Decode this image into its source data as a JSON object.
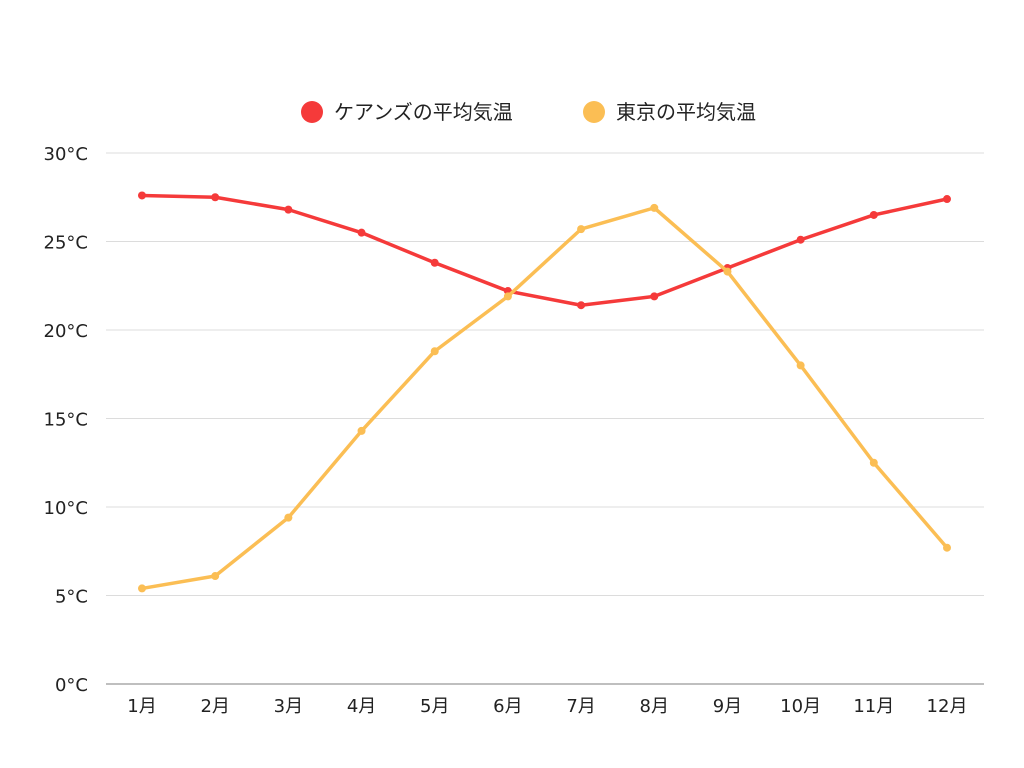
{
  "chart_data": {
    "type": "line",
    "title": "",
    "xlabel": "",
    "ylabel": "",
    "categories": [
      "1月",
      "2月",
      "3月",
      "4月",
      "5月",
      "6月",
      "7月",
      "8月",
      "9月",
      "10月",
      "11月",
      "12月"
    ],
    "ylim": [
      0,
      30
    ],
    "yticks": [
      0,
      5,
      10,
      15,
      20,
      25,
      30
    ],
    "ytick_labels": [
      "0°C",
      "5°C",
      "10°C",
      "15°C",
      "20°C",
      "25°C",
      "30°C"
    ],
    "grid": true,
    "legend_position": "top-center",
    "series": [
      {
        "name": "ケアンズの平均気温",
        "color": "#f53a3a",
        "values": [
          27.6,
          27.5,
          26.8,
          25.5,
          23.8,
          22.2,
          21.4,
          21.9,
          23.5,
          25.1,
          26.5,
          27.4
        ]
      },
      {
        "name": "東京の平均気温",
        "color": "#fbbe54",
        "values": [
          5.4,
          6.1,
          9.4,
          14.3,
          18.8,
          21.9,
          25.7,
          26.9,
          23.3,
          18.0,
          12.5,
          7.7
        ]
      }
    ]
  }
}
